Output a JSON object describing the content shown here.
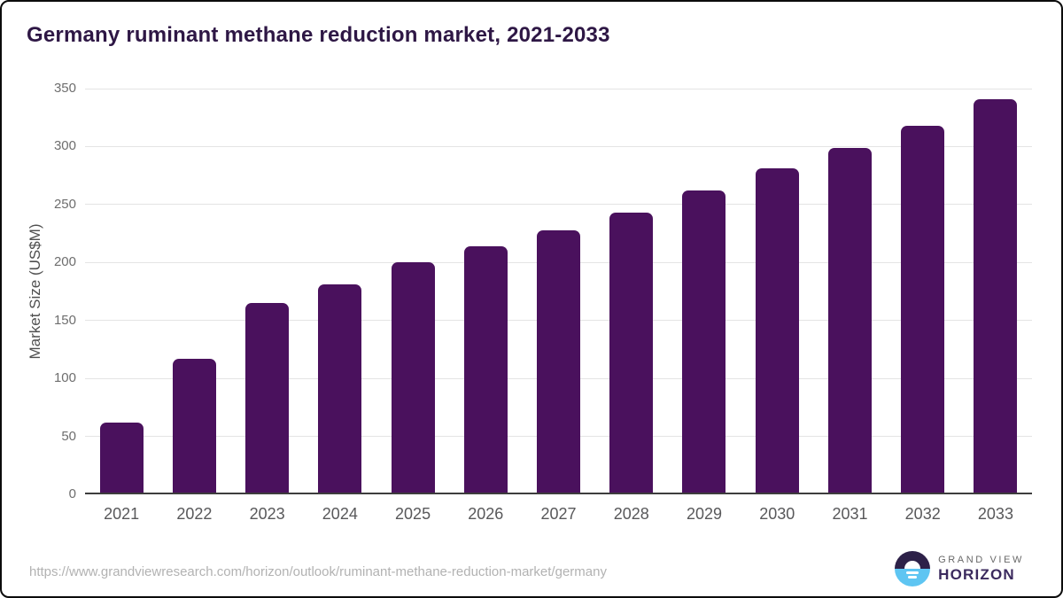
{
  "title": "Germany ruminant methane reduction market, 2021-2033",
  "chart_data": {
    "type": "bar",
    "title": "Germany ruminant methane reduction market, 2021-2033",
    "categories": [
      "2021",
      "2022",
      "2023",
      "2024",
      "2025",
      "2026",
      "2027",
      "2028",
      "2029",
      "2030",
      "2031",
      "2032",
      "2033"
    ],
    "values": [
      62,
      117,
      165,
      181,
      200,
      214,
      228,
      243,
      262,
      281,
      299,
      318,
      341
    ],
    "xlabel": "",
    "ylabel": "Market Size (US$M)",
    "ylim": [
      0,
      350
    ],
    "yticks": [
      0,
      50,
      100,
      150,
      200,
      250,
      300,
      350
    ],
    "grid": "horizontal",
    "legend": "none",
    "bar_color": "#4a115d"
  },
  "footer": {
    "url": "https://www.grandviewresearch.com/horizon/outlook/ruminant-methane-reduction-market/germany",
    "logo": {
      "top": "GRAND VIEW",
      "bottom": "HORIZON"
    }
  },
  "colors": {
    "title_text": "#2e1745",
    "bar": "#4a115d",
    "gridline": "#e4e4e4",
    "axis_line": "#3d3d3d",
    "y_tick_text": "#6e6e6e",
    "x_tick_text": "#58585a",
    "url_text": "#b2b2b2",
    "logo_purple": "#2d2148",
    "logo_blue": "#5ec5f2"
  }
}
